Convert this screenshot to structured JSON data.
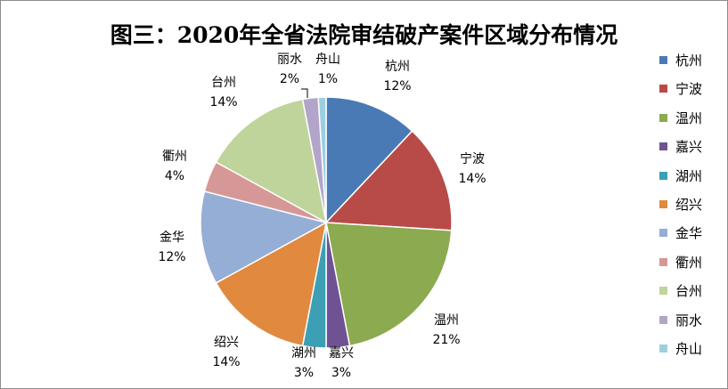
{
  "chart_data": {
    "type": "pie",
    "title": "图三：2020年全省法院审结破产案件区域分布情况",
    "slices": [
      {
        "name": "杭州",
        "value": 12,
        "label": "12%",
        "color": "#4a7ab5"
      },
      {
        "name": "宁波",
        "value": 14,
        "label": "14%",
        "color": "#b84b48"
      },
      {
        "name": "温州",
        "value": 21,
        "label": "21%",
        "color": "#8caa4f"
      },
      {
        "name": "嘉兴",
        "value": 3,
        "label": "3%",
        "color": "#6f5292"
      },
      {
        "name": "湖州",
        "value": 3,
        "label": "3%",
        "color": "#3d9fb4"
      },
      {
        "name": "绍兴",
        "value": 14,
        "label": "14%",
        "color": "#e0893f"
      },
      {
        "name": "金华",
        "value": 12,
        "label": "12%",
        "color": "#95aed6"
      },
      {
        "name": "衢州",
        "value": 4,
        "label": "4%",
        "color": "#d69896"
      },
      {
        "name": "台州",
        "value": 14,
        "label": "14%",
        "color": "#bfd49b"
      },
      {
        "name": "丽水",
        "value": 2,
        "label": "2%",
        "color": "#b3a5c9"
      },
      {
        "name": "舟山",
        "value": 1,
        "label": "1%",
        "color": "#9ccfe0"
      }
    ],
    "legend_position": "right"
  }
}
